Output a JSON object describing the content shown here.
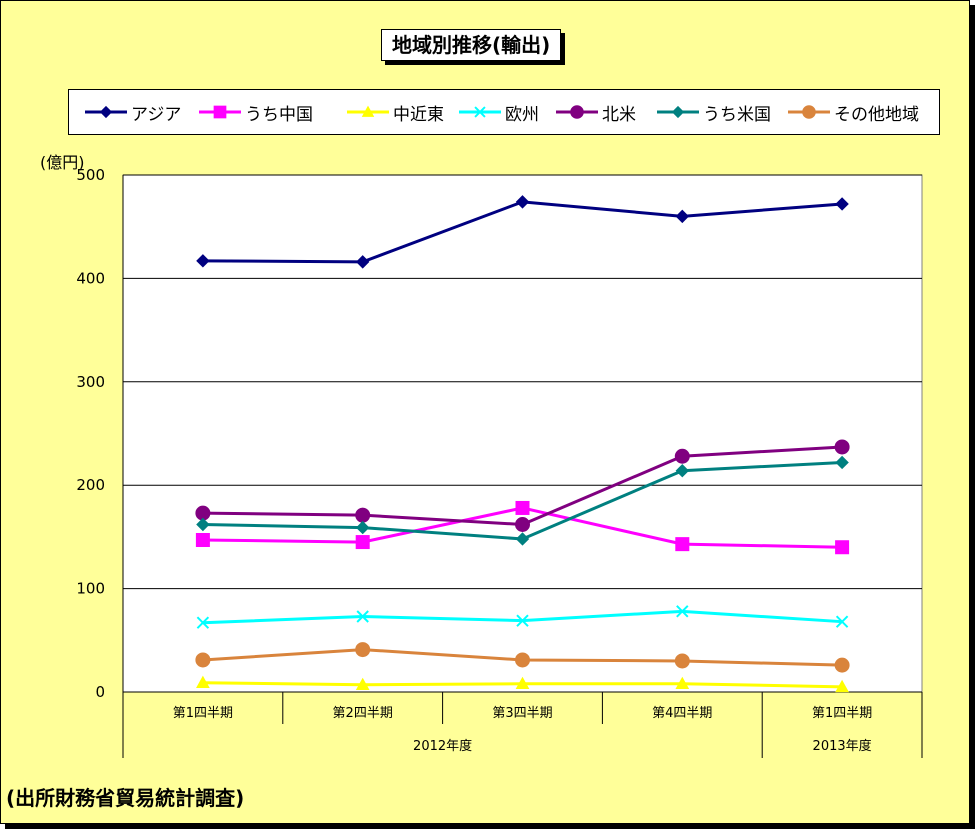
{
  "title": "地域別推移(輸出)",
  "unit_label": "(億円)",
  "source": "(出所財務省貿易統計調査)",
  "chart_data": {
    "type": "line",
    "categories": [
      "第1四半期",
      "第2四半期",
      "第3四半期",
      "第4四半期",
      "第1四半期"
    ],
    "category_groups": [
      {
        "label": "2012年度",
        "span": 4
      },
      {
        "label": "2013年度",
        "span": 1
      }
    ],
    "ylim": [
      0,
      500
    ],
    "yticks": [
      0,
      100,
      200,
      300,
      400,
      500
    ],
    "ylabel": "(億円)",
    "xlabel": "",
    "grid": true,
    "legend_position": "top",
    "series": [
      {
        "name": "アジア",
        "color": "#000080",
        "marker": "diamond",
        "values": [
          417,
          416,
          474,
          460,
          472
        ]
      },
      {
        "name": "うち中国",
        "color": "#ff00ff",
        "marker": "square",
        "values": [
          147,
          145,
          178,
          143,
          140
        ]
      },
      {
        "name": "中近東",
        "color": "#ffff00",
        "marker": "triangle",
        "values": [
          9,
          7,
          8,
          8,
          5
        ]
      },
      {
        "name": "欧州",
        "color": "#00ffff",
        "marker": "x",
        "values": [
          67,
          73,
          69,
          78,
          68
        ]
      },
      {
        "name": "北米",
        "color": "#800080",
        "marker": "circle",
        "values": [
          173,
          171,
          162,
          228,
          237
        ]
      },
      {
        "name": "うち米国",
        "color": "#008080",
        "marker": "diamond",
        "values": [
          162,
          159,
          148,
          214,
          222
        ]
      },
      {
        "name": "その他地域",
        "color": "#d9843c",
        "marker": "circle",
        "values": [
          31,
          41,
          31,
          30,
          26
        ]
      }
    ]
  }
}
